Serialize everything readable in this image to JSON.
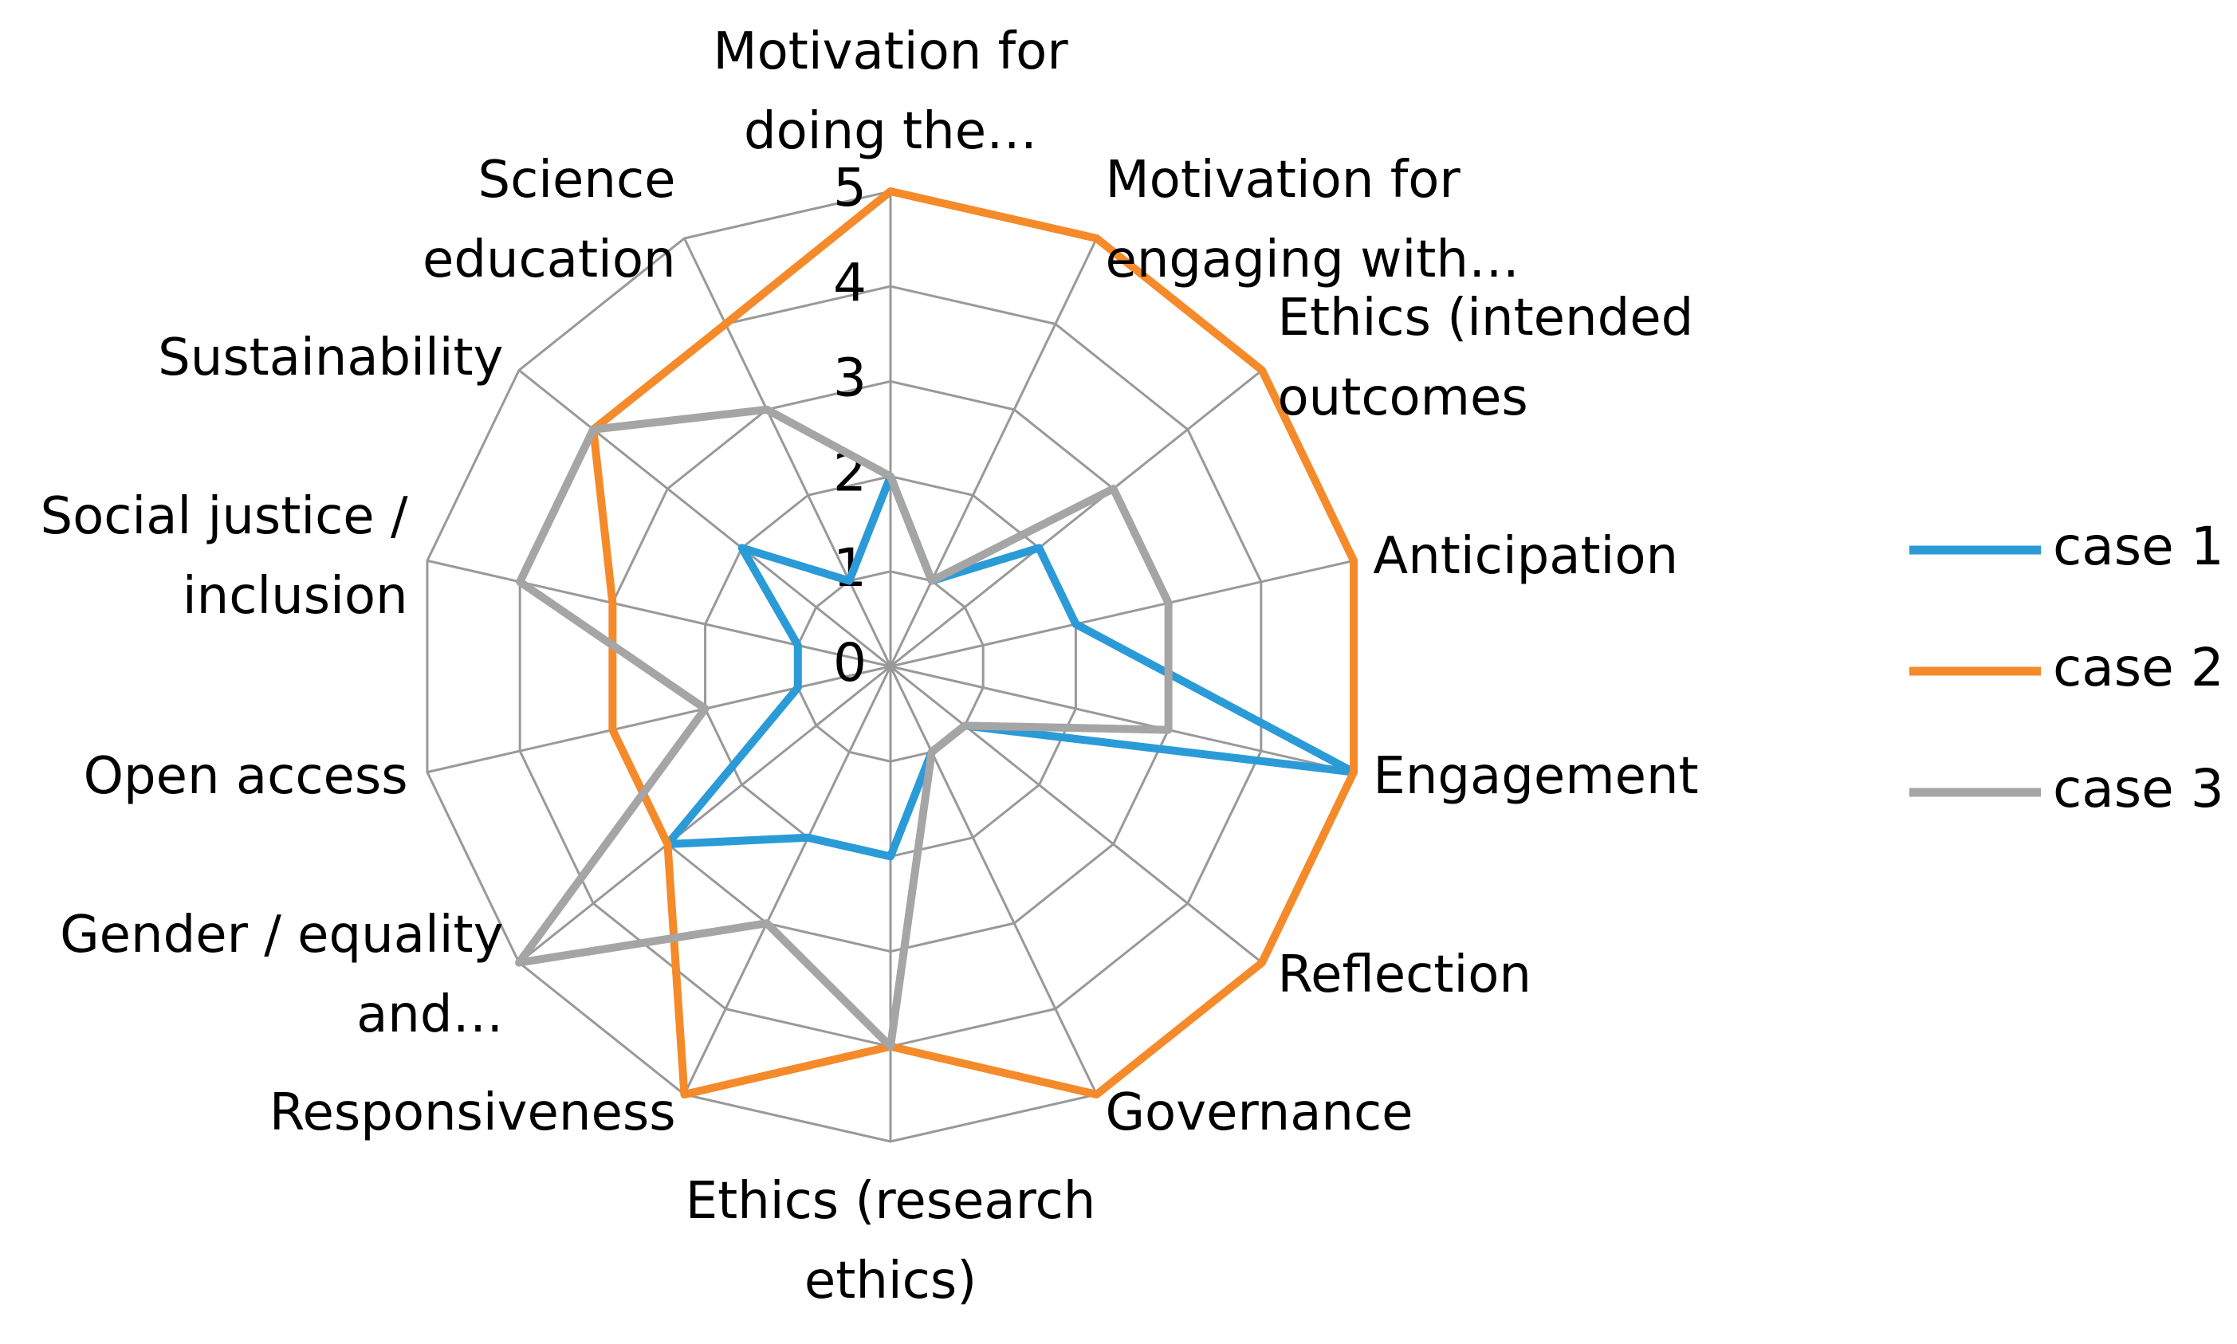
{
  "chart_data": {
    "type": "radar",
    "categories": [
      "Motivation for doing the…",
      "Motivation for engaging with…",
      "Ethics (intended outcomes",
      "Anticipation",
      "Engagement",
      "Reflection",
      "Governance",
      "Ethics (research ethics)",
      "Responsiveness",
      "Gender / equality and…",
      "Open access",
      "Social justice / inclusion",
      "Sustainability",
      "Science education"
    ],
    "series": [
      {
        "name": "case 1",
        "color": "#2b9bd8",
        "values": [
          2,
          1,
          2,
          2,
          5,
          1,
          1,
          2,
          2,
          3,
          1,
          1,
          2,
          1
        ]
      },
      {
        "name": "case 2",
        "color": "#f58a2a",
        "values": [
          5,
          5,
          5,
          5,
          5,
          5,
          5,
          4,
          5,
          3,
          3,
          3,
          4,
          4
        ]
      },
      {
        "name": "case 3",
        "color": "#a5a5a5",
        "values": [
          2,
          1,
          3,
          3,
          3,
          1,
          1,
          4,
          3,
          5,
          2,
          4,
          4,
          3
        ]
      }
    ],
    "ylim": [
      0,
      5
    ],
    "yticks": [
      0,
      1,
      2,
      3,
      4,
      5
    ],
    "grid": true,
    "legend": "right"
  }
}
